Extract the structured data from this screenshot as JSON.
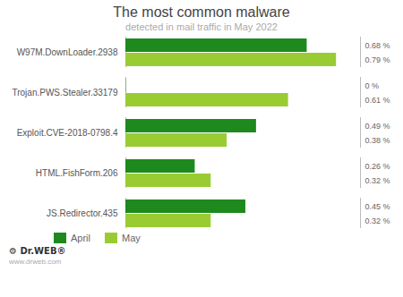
{
  "chart_data": {
    "type": "bar",
    "orientation": "horizontal",
    "title": "The most common malware",
    "subtitle": "detected in mail traffic in May 2022",
    "categories": [
      "W97M.DownLoader.2938",
      "Trojan.PWS.Stealer.33179",
      "Exploit.CVE-2018-0798.4",
      "HTML.FishForm.206",
      "JS.Redirector.435"
    ],
    "series": [
      {
        "name": "April",
        "color": "#1e8a1e",
        "values": [
          0.68,
          0.001,
          0.49,
          0.26,
          0.45
        ],
        "value_labels": [
          "0.68 %",
          "0 %",
          "0.49 %",
          "0.26 %",
          "0.45 %"
        ]
      },
      {
        "name": "May",
        "color": "#99cc33",
        "values": [
          0.79,
          0.61,
          0.38,
          0.32,
          0.32
        ],
        "value_labels": [
          "0.79 %",
          "0.61 %",
          "0.38 %",
          "0.32 %",
          "0.32 %"
        ]
      }
    ],
    "xlim": [
      0,
      0.88
    ],
    "tick_labels": "y",
    "data_labels": true,
    "grid": false,
    "legend": "lower left",
    "annotations": [
      "⚙ Dr.WEB®",
      "www.drweb.com"
    ]
  }
}
